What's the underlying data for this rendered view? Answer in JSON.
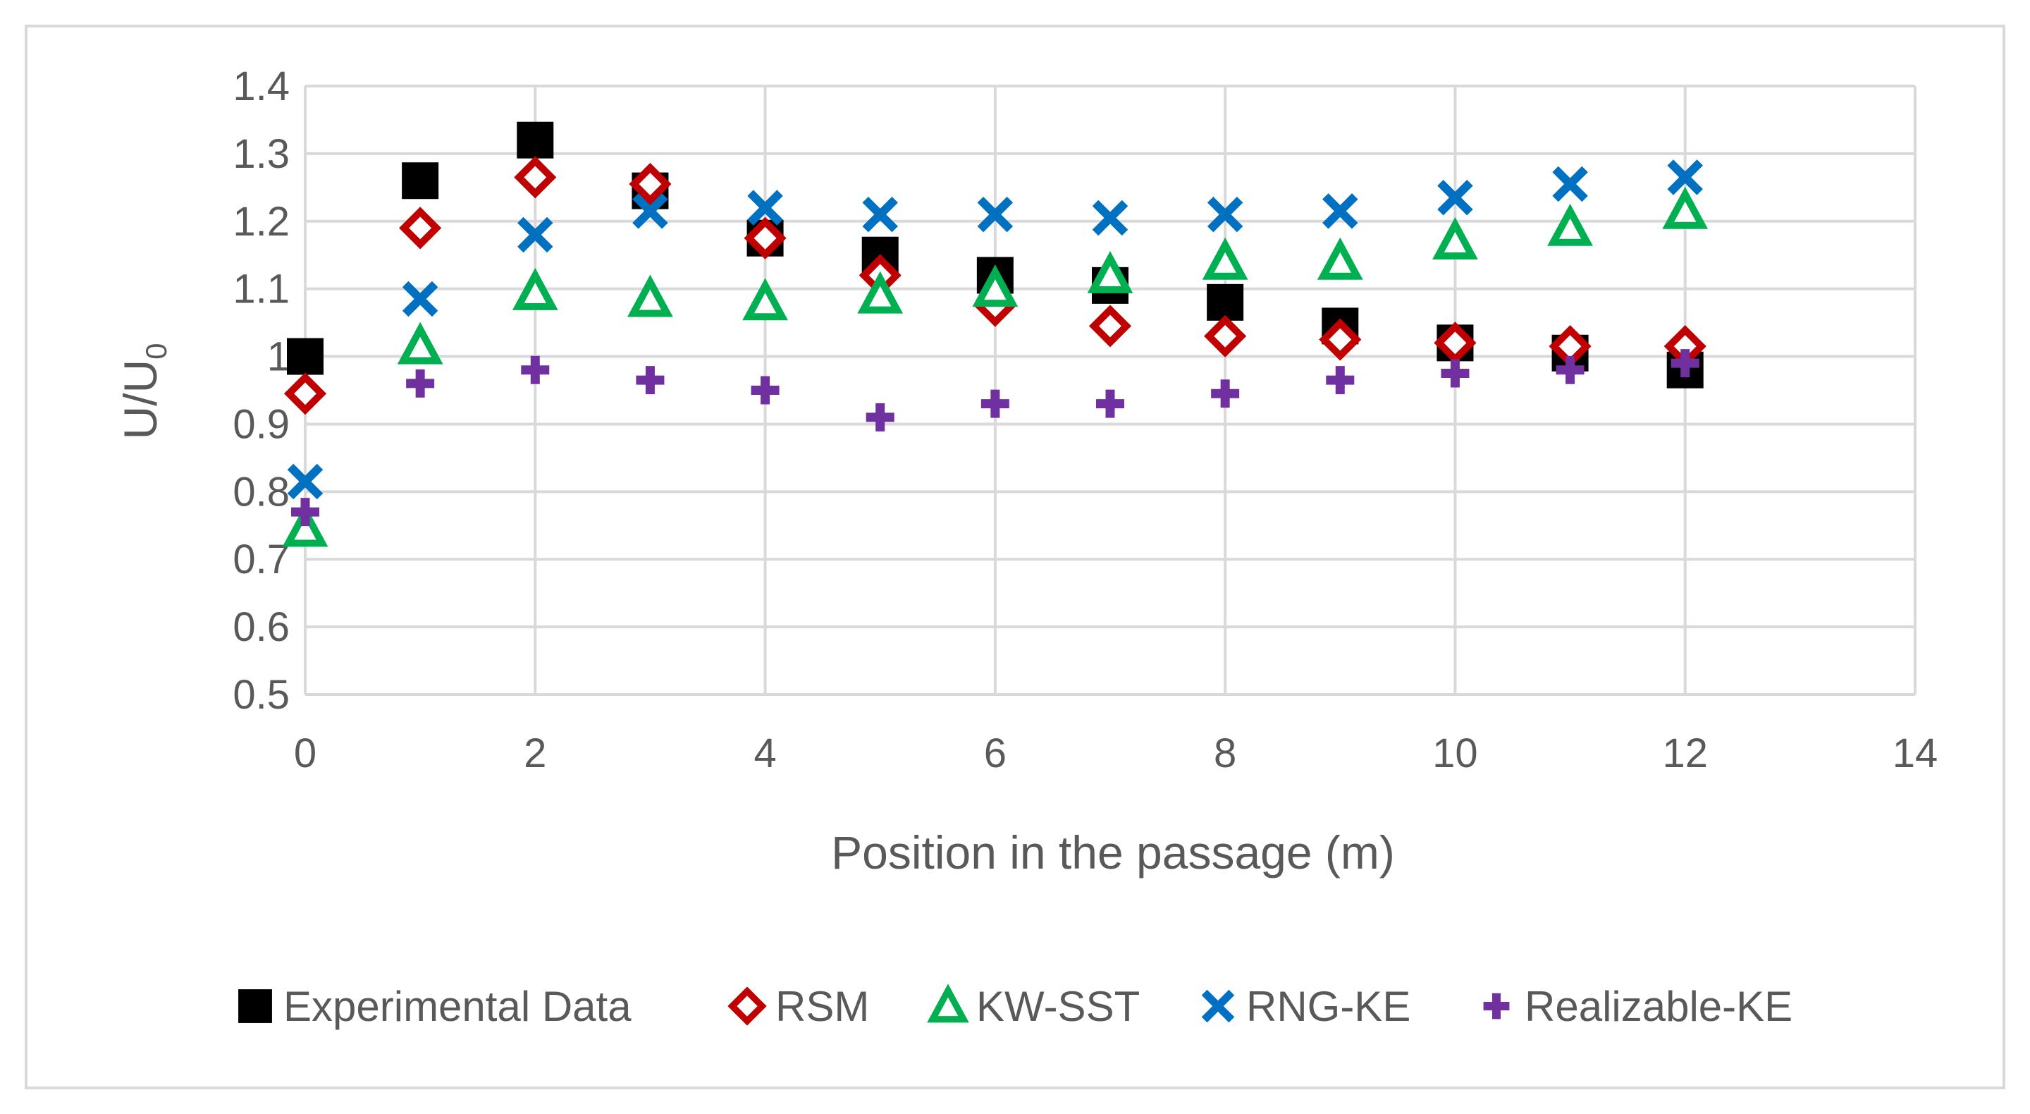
{
  "chart_data": {
    "type": "scatter",
    "title": "",
    "xlabel": "Position in the passage (m)",
    "ylabel_main": "U/U",
    "ylabel_sub": "0",
    "xlim": [
      0,
      14
    ],
    "ylim": [
      0.5,
      1.4
    ],
    "x_ticks": [
      0,
      2,
      4,
      6,
      8,
      10,
      12,
      14
    ],
    "x_tick_labels": [
      "0",
      "2",
      "4",
      "6",
      "8",
      "10",
      "12",
      "14"
    ],
    "y_ticks": [
      0.5,
      0.6,
      0.7,
      0.8,
      0.9,
      1.0,
      1.1,
      1.2,
      1.3,
      1.4
    ],
    "y_tick_labels": [
      "0.5",
      "0.6",
      "0.7",
      "0.8",
      "0.9",
      "1",
      "1.1",
      "1.2",
      "1.3",
      "1.4"
    ],
    "grid": true,
    "legend_position": "bottom",
    "series": [
      {
        "name": "Experimental Data",
        "marker": "square",
        "color": "#000000",
        "x": [
          0,
          1,
          2,
          3,
          4,
          5,
          6,
          7,
          8,
          9,
          10,
          11,
          12
        ],
        "y": [
          1.0,
          1.26,
          1.32,
          1.245,
          1.175,
          1.15,
          1.12,
          1.105,
          1.08,
          1.045,
          1.02,
          1.005,
          0.98
        ]
      },
      {
        "name": "RSM",
        "marker": "diamond",
        "color": "#C00000",
        "x": [
          0,
          1,
          2,
          3,
          4,
          5,
          6,
          7,
          8,
          9,
          10,
          11,
          12
        ],
        "y": [
          0.945,
          1.19,
          1.265,
          1.255,
          1.175,
          1.12,
          1.075,
          1.045,
          1.03,
          1.025,
          1.02,
          1.015,
          1.015
        ]
      },
      {
        "name": "KW-SST",
        "marker": "triangle",
        "color": "#00B050",
        "x": [
          0,
          1,
          2,
          3,
          4,
          5,
          6,
          7,
          8,
          9,
          10,
          11,
          12
        ],
        "y": [
          0.745,
          1.015,
          1.095,
          1.085,
          1.08,
          1.09,
          1.1,
          1.12,
          1.14,
          1.14,
          1.17,
          1.19,
          1.215
        ]
      },
      {
        "name": "RNG-KE",
        "marker": "x",
        "color": "#0070C0",
        "x": [
          0,
          1,
          2,
          3,
          4,
          5,
          6,
          7,
          8,
          9,
          10,
          11,
          12
        ],
        "y": [
          0.815,
          1.085,
          1.18,
          1.215,
          1.22,
          1.21,
          1.21,
          1.205,
          1.21,
          1.215,
          1.235,
          1.255,
          1.265
        ]
      },
      {
        "name": "Realizable-KE",
        "marker": "plus",
        "color": "#7030A0",
        "x": [
          0,
          1,
          2,
          3,
          4,
          5,
          6,
          7,
          8,
          9,
          10,
          11,
          12
        ],
        "y": [
          0.77,
          0.96,
          0.98,
          0.965,
          0.95,
          0.91,
          0.93,
          0.93,
          0.945,
          0.965,
          0.975,
          0.98,
          0.99
        ]
      }
    ]
  },
  "colors": {
    "grid": "#D9D9D9",
    "text": "#595959",
    "border": "#D9D9D9"
  }
}
